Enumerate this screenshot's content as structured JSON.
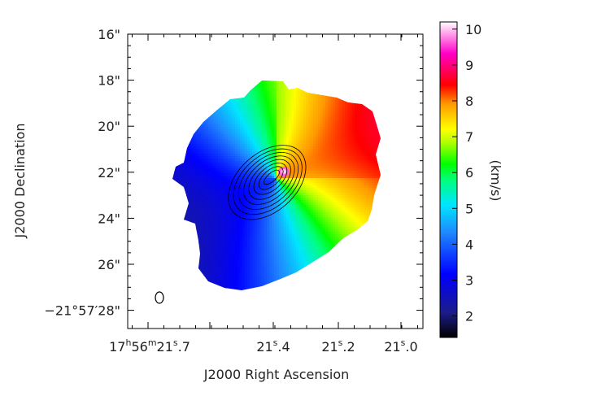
{
  "chart_data": {
    "type": "heatmap",
    "xlabel": "J2000 Right Ascension",
    "ylabel": "J2000 Declination",
    "x_ticks": [
      "17h56m21s.7",
      "21s.4",
      "21s.2",
      "21s.0"
    ],
    "x_ticks_parts": [
      {
        "h": "17",
        "m": "56",
        "s": "21",
        "frac": ".7"
      },
      {
        "s": "21",
        "frac": ".4"
      },
      {
        "s": "21",
        "frac": ".2"
      },
      {
        "s": "21",
        "frac": ".0"
      }
    ],
    "y_ticks": [
      "16\"",
      "18\"",
      "20\"",
      "22\"",
      "24\"",
      "26\"",
      "−21°57′28\""
    ],
    "y_tick_values": [
      16,
      18,
      20,
      22,
      24,
      26,
      28
    ],
    "colorbar": {
      "label": "(km/s)",
      "ticks": [
        2,
        3,
        4,
        5,
        6,
        7,
        8,
        9,
        10
      ],
      "range": [
        1.4,
        10.2
      ],
      "colormap": [
        "#000000",
        "#1c1c8c",
        "#0000ff",
        "#1f86ff",
        "#00e5ff",
        "#00ff7a",
        "#00ff00",
        "#b5ff00",
        "#ffff00",
        "#ff9a00",
        "#ff0000",
        "#ff00c8",
        "#ffffff"
      ]
    },
    "velocity_field": {
      "systemic_velocity_kms": 5.4,
      "redshifted_side": "north-west",
      "blueshifted_side": "south-east",
      "peak_red_kms": 10.0,
      "peak_blue_kms": 1.6
    },
    "contours": {
      "levels": 8,
      "color": "#000000"
    },
    "beam": {
      "shape": "ellipse",
      "position": "bottom-left"
    },
    "grid": false
  }
}
